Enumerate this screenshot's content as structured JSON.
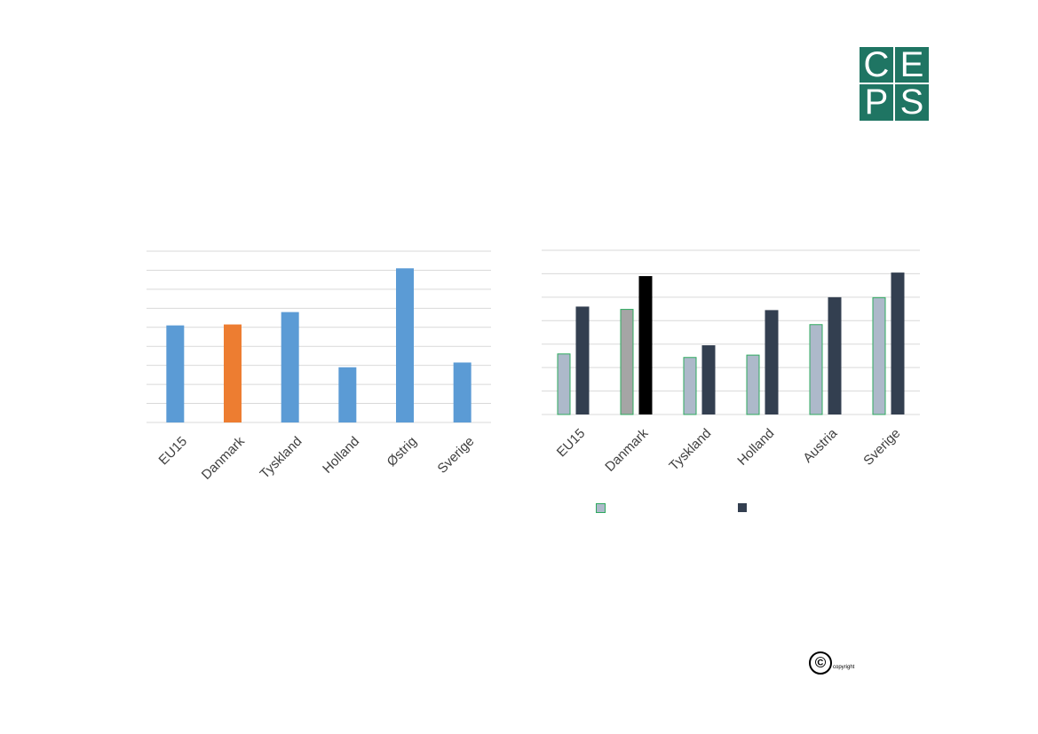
{
  "logo": {
    "letters": [
      "C",
      "E",
      "P",
      "S"
    ],
    "color": "#1f7563"
  },
  "copyright": {
    "symbol": "©",
    "text": "copyright"
  },
  "chart_data": [
    {
      "type": "bar",
      "categories": [
        "EU15",
        "Danmark",
        "Tyskland",
        "Holland",
        "Østrig",
        "Sverige"
      ],
      "values": [
        5.1,
        5.15,
        5.8,
        2.9,
        8.1,
        3.15
      ],
      "bar_colors": [
        "#5b9bd5",
        "#ed7d31",
        "#5b9bd5",
        "#5b9bd5",
        "#5b9bd5",
        "#5b9bd5"
      ],
      "ylim": [
        0,
        9
      ],
      "grid": true
    },
    {
      "type": "bar",
      "categories": [
        "EU15",
        "Danmark",
        "Tyskland",
        "Holland",
        "Austria",
        "Sverige"
      ],
      "series": [
        {
          "values": [
            2.6,
            4.5,
            2.45,
            2.55,
            3.85,
            5.0
          ],
          "fill": "#adb9ca",
          "edge": "#2eaa5f",
          "highlight_fill": "#a5a5a5"
        },
        {
          "values": [
            4.6,
            5.9,
            2.95,
            4.45,
            5.0,
            6.05
          ],
          "fill": "#333f50",
          "highlight_fill": "#000000"
        }
      ],
      "highlight_category": "Danmark",
      "ylim": [
        0,
        7
      ],
      "grid": true,
      "legend": "bottom"
    }
  ]
}
